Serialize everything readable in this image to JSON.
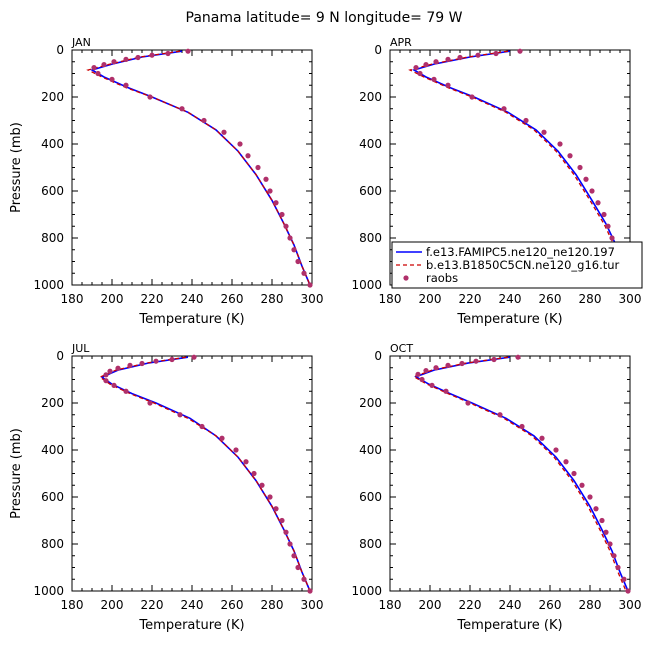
{
  "title": "Panama   latitude= 9 N longitude= 79 W",
  "colors": {
    "model1": "#0000ff",
    "model2": "#cc0000",
    "obs": "#b0306a"
  },
  "legend": {
    "items": [
      {
        "label": "f.e13.FAMIPC5.ne120_ne120.197",
        "style": "solid-line"
      },
      {
        "label": "b.e13.B1850C5CN.ne120_g16.tur",
        "style": "dashed-line"
      },
      {
        "label": "raobs",
        "style": "dot"
      }
    ]
  },
  "chart_data": [
    {
      "type": "line",
      "panel": "JAN",
      "xlabel": "Temperature (K)",
      "ylabel": "Pressure (mb)",
      "xlim": [
        180,
        300
      ],
      "ylim": [
        1000,
        0
      ],
      "xticks": [
        180,
        200,
        220,
        240,
        260,
        280,
        300
      ],
      "yticks": [
        0,
        200,
        400,
        600,
        800,
        1000
      ],
      "series": [
        {
          "name": "f.e13.FAMIPC5.ne120_ne120.197",
          "style": "solid",
          "points": [
            [
              235,
              5
            ],
            [
              215,
              30
            ],
            [
              200,
              60
            ],
            [
              190,
              85
            ],
            [
              196,
              115
            ],
            [
              208,
              160
            ],
            [
              220,
              200
            ],
            [
              238,
              265
            ],
            [
              252,
              340
            ],
            [
              263,
              430
            ],
            [
              272,
              530
            ],
            [
              280,
              640
            ],
            [
              286,
              740
            ],
            [
              291,
              830
            ],
            [
              295,
              920
            ],
            [
              299,
              1000
            ]
          ]
        },
        {
          "name": "b.e13.B1850C5CN.ne120_g16.tur",
          "style": "dashed",
          "points": [
            [
              234,
              5
            ],
            [
              214,
              30
            ],
            [
              199,
              60
            ],
            [
              188,
              85
            ],
            [
              195,
              115
            ],
            [
              207,
              160
            ],
            [
              220,
              200
            ],
            [
              238,
              265
            ],
            [
              252,
              340
            ],
            [
              263,
              430
            ],
            [
              272,
              530
            ],
            [
              280,
              640
            ],
            [
              286,
              740
            ],
            [
              291,
              830
            ],
            [
              295,
              920
            ],
            [
              299,
              1000
            ]
          ]
        },
        {
          "name": "raobs",
          "style": "dots",
          "points": [
            [
              238,
              5
            ],
            [
              228,
              15
            ],
            [
              220,
              22
            ],
            [
              213,
              32
            ],
            [
              207,
              40
            ],
            [
              201,
              50
            ],
            [
              196,
              62
            ],
            [
              191,
              75
            ],
            [
              193,
              100
            ],
            [
              200,
              125
            ],
            [
              207,
              150
            ],
            [
              219,
              200
            ],
            [
              235,
              250
            ],
            [
              246,
              300
            ],
            [
              256,
              350
            ],
            [
              264,
              400
            ],
            [
              268,
              450
            ],
            [
              273,
              500
            ],
            [
              277,
              550
            ],
            [
              279,
              600
            ],
            [
              282,
              650
            ],
            [
              285,
              700
            ],
            [
              287,
              750
            ],
            [
              289,
              800
            ],
            [
              291,
              850
            ],
            [
              293,
              900
            ],
            [
              296,
              950
            ],
            [
              299,
              1000
            ]
          ]
        }
      ]
    },
    {
      "type": "line",
      "panel": "APR",
      "xlabel": "Temperature (K)",
      "ylabel": "",
      "xlim": [
        180,
        300
      ],
      "ylim": [
        1000,
        0
      ],
      "xticks": [
        180,
        200,
        220,
        240,
        260,
        280,
        300
      ],
      "yticks": [
        0,
        200,
        400,
        600,
        800,
        1000
      ],
      "series": [
        {
          "name": "f.e13.FAMIPC5.ne120_ne120.197",
          "style": "solid",
          "points": [
            [
              240,
              5
            ],
            [
              220,
              30
            ],
            [
              202,
              60
            ],
            [
              192,
              85
            ],
            [
              198,
              115
            ],
            [
              210,
              160
            ],
            [
              222,
              200
            ],
            [
              239,
              265
            ],
            [
              253,
              340
            ],
            [
              264,
              430
            ],
            [
              273,
              530
            ],
            [
              281,
              640
            ],
            [
              288,
              740
            ],
            [
              293,
              830
            ],
            [
              296,
              920
            ],
            [
              299,
              1000
            ]
          ]
        },
        {
          "name": "b.e13.B1850C5CN.ne120_g16.tur",
          "style": "dashed",
          "points": [
            [
              239,
              5
            ],
            [
              219,
              30
            ],
            [
              201,
              60
            ],
            [
              190,
              85
            ],
            [
              197,
              115
            ],
            [
              209,
              160
            ],
            [
              221,
              200
            ],
            [
              238,
              265
            ],
            [
              252,
              340
            ],
            [
              263,
              430
            ],
            [
              272,
              530
            ],
            [
              280,
              640
            ],
            [
              287,
              740
            ],
            [
              292,
              830
            ],
            [
              296,
              920
            ],
            [
              299,
              1000
            ]
          ]
        },
        {
          "name": "raobs",
          "style": "dots",
          "points": [
            [
              245,
              5
            ],
            [
              233,
              15
            ],
            [
              224,
              22
            ],
            [
              215,
              32
            ],
            [
              209,
              40
            ],
            [
              203,
              50
            ],
            [
              198,
              62
            ],
            [
              193,
              75
            ],
            [
              195,
              100
            ],
            [
              202,
              125
            ],
            [
              209,
              150
            ],
            [
              221,
              200
            ],
            [
              237,
              250
            ],
            [
              248,
              300
            ],
            [
              257,
              350
            ],
            [
              265,
              400
            ],
            [
              270,
              450
            ],
            [
              275,
              500
            ],
            [
              278,
              550
            ],
            [
              281,
              600
            ],
            [
              284,
              650
            ],
            [
              287,
              700
            ],
            [
              289,
              750
            ],
            [
              291,
              800
            ],
            [
              293,
              850
            ],
            [
              295,
              900
            ],
            [
              297,
              950
            ],
            [
              300,
              1000
            ]
          ]
        }
      ]
    },
    {
      "type": "line",
      "panel": "JUL",
      "xlabel": "Temperature (K)",
      "ylabel": "Pressure (mb)",
      "xlim": [
        180,
        300
      ],
      "ylim": [
        1000,
        0
      ],
      "xticks": [
        180,
        200,
        220,
        240,
        260,
        280,
        300
      ],
      "yticks": [
        0,
        200,
        400,
        600,
        800,
        1000
      ],
      "series": [
        {
          "name": "f.e13.FAMIPC5.ne120_ne120.197",
          "style": "solid",
          "points": [
            [
              238,
              5
            ],
            [
              218,
              30
            ],
            [
              203,
              60
            ],
            [
              195,
              90
            ],
            [
              200,
              120
            ],
            [
              210,
              160
            ],
            [
              222,
              200
            ],
            [
              239,
              265
            ],
            [
              252,
              340
            ],
            [
              263,
              430
            ],
            [
              272,
              530
            ],
            [
              280,
              640
            ],
            [
              286,
              740
            ],
            [
              291,
              830
            ],
            [
              295,
              920
            ],
            [
              299,
              1000
            ]
          ]
        },
        {
          "name": "b.e13.B1850C5CN.ne120_g16.tur",
          "style": "dashed",
          "points": [
            [
              237,
              5
            ],
            [
              217,
              30
            ],
            [
              202,
              60
            ],
            [
              194,
              90
            ],
            [
              199,
              120
            ],
            [
              209,
              160
            ],
            [
              221,
              200
            ],
            [
              238,
              265
            ],
            [
              252,
              340
            ],
            [
              263,
              430
            ],
            [
              272,
              530
            ],
            [
              280,
              640
            ],
            [
              286,
              740
            ],
            [
              291,
              830
            ],
            [
              295,
              920
            ],
            [
              299,
              1000
            ]
          ]
        },
        {
          "name": "raobs",
          "style": "dots",
          "points": [
            [
              241,
              5
            ],
            [
              230,
              15
            ],
            [
              222,
              22
            ],
            [
              215,
              32
            ],
            [
              209,
              40
            ],
            [
              203,
              52
            ],
            [
              199,
              65
            ],
            [
              197,
              80
            ],
            [
              197,
              105
            ],
            [
              201,
              125
            ],
            [
              207,
              150
            ],
            [
              219,
              200
            ],
            [
              234,
              250
            ],
            [
              245,
              300
            ],
            [
              255,
              350
            ],
            [
              262,
              400
            ],
            [
              267,
              450
            ],
            [
              271,
              500
            ],
            [
              275,
              550
            ],
            [
              279,
              600
            ],
            [
              282,
              650
            ],
            [
              285,
              700
            ],
            [
              287,
              750
            ],
            [
              289,
              800
            ],
            [
              291,
              850
            ],
            [
              293,
              900
            ],
            [
              296,
              950
            ],
            [
              299,
              1000
            ]
          ]
        }
      ]
    },
    {
      "type": "line",
      "panel": "OCT",
      "xlabel": "Temperature (K)",
      "ylabel": "",
      "xlim": [
        180,
        300
      ],
      "ylim": [
        1000,
        0
      ],
      "xticks": [
        180,
        200,
        220,
        240,
        260,
        280,
        300
      ],
      "yticks": [
        0,
        200,
        400,
        600,
        800,
        1000
      ],
      "series": [
        {
          "name": "f.e13.FAMIPC5.ne120_ne120.197",
          "style": "solid",
          "points": [
            [
              240,
              5
            ],
            [
              219,
              30
            ],
            [
              202,
              60
            ],
            [
              193,
              88
            ],
            [
              199,
              118
            ],
            [
              210,
              160
            ],
            [
              221,
              200
            ],
            [
              238,
              265
            ],
            [
              252,
              340
            ],
            [
              263,
              430
            ],
            [
              272,
              530
            ],
            [
              280,
              640
            ],
            [
              286,
              740
            ],
            [
              291,
              830
            ],
            [
              295,
              920
            ],
            [
              299,
              1000
            ]
          ]
        },
        {
          "name": "b.e13.B1850C5CN.ne120_g16.tur",
          "style": "dashed",
          "points": [
            [
              239,
              5
            ],
            [
              218,
              30
            ],
            [
              201,
              60
            ],
            [
              192,
              88
            ],
            [
              198,
              118
            ],
            [
              209,
              160
            ],
            [
              220,
              200
            ],
            [
              237,
              265
            ],
            [
              251,
              340
            ],
            [
              262,
              430
            ],
            [
              271,
              530
            ],
            [
              279,
              640
            ],
            [
              285,
              740
            ],
            [
              290,
              830
            ],
            [
              294,
              920
            ],
            [
              298,
              1000
            ]
          ]
        },
        {
          "name": "raobs",
          "style": "dots",
          "points": [
            [
              244,
              5
            ],
            [
              232,
              15
            ],
            [
              223,
              22
            ],
            [
              216,
              32
            ],
            [
              209,
              40
            ],
            [
              203,
              50
            ],
            [
              198,
              62
            ],
            [
              194,
              78
            ],
            [
              196,
              100
            ],
            [
              201,
              125
            ],
            [
              208,
              150
            ],
            [
              219,
              200
            ],
            [
              235,
              250
            ],
            [
              246,
              300
            ],
            [
              256,
              350
            ],
            [
              263,
              400
            ],
            [
              268,
              450
            ],
            [
              272,
              500
            ],
            [
              276,
              550
            ],
            [
              280,
              600
            ],
            [
              283,
              650
            ],
            [
              286,
              700
            ],
            [
              288,
              750
            ],
            [
              290,
              800
            ],
            [
              292,
              850
            ],
            [
              294,
              900
            ],
            [
              297,
              950
            ],
            [
              299,
              1000
            ]
          ]
        }
      ]
    }
  ]
}
